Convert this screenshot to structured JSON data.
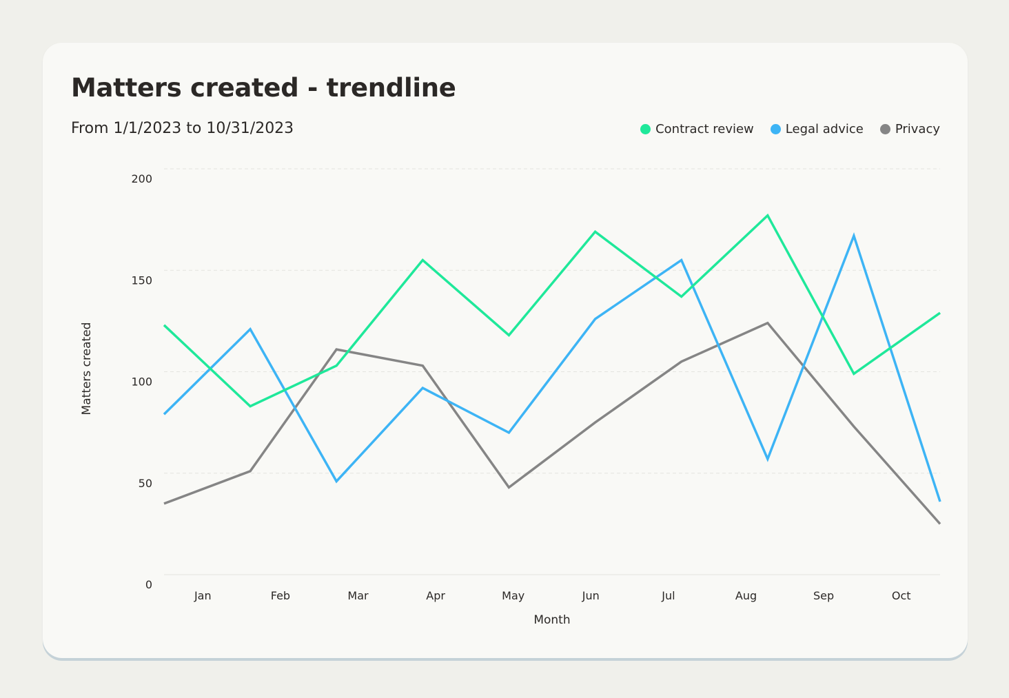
{
  "title": "Matters created - trendline",
  "subtitle": "From 1/1/2023 to 10/31/2023",
  "colors": {
    "contract_review": "#1fe89a",
    "legal_advice": "#3db4f5",
    "privacy": "#858585"
  },
  "legend": [
    {
      "name": "Contract review",
      "color": "#1fe89a"
    },
    {
      "name": "Legal advice",
      "color": "#3db4f5"
    },
    {
      "name": "Privacy",
      "color": "#858585"
    }
  ],
  "chart_data": {
    "type": "line",
    "title": "Matters created - trendline",
    "subtitle": "From 1/1/2023 to 10/31/2023",
    "xlabel": "Month",
    "ylabel": "Matters created",
    "categories": [
      "Jan",
      "Feb",
      "Mar",
      "Apr",
      "May",
      "Jun",
      "Jul",
      "Aug",
      "Sep",
      "Oct"
    ],
    "yticks": [
      0,
      50,
      100,
      150,
      200
    ],
    "ylim": [
      0,
      200
    ],
    "grid": true,
    "legend_position": "top-right",
    "x_points": [
      0,
      1,
      2,
      3,
      4,
      5,
      6,
      7,
      8,
      9
    ],
    "series": [
      {
        "name": "Contract review",
        "color": "#1fe89a",
        "values": [
          123,
          83,
          103,
          155,
          118,
          169,
          137,
          177,
          99,
          129
        ]
      },
      {
        "name": "Legal advice",
        "color": "#3db4f5",
        "values": [
          79,
          121,
          46,
          92,
          70,
          126,
          155,
          57,
          167,
          36
        ]
      },
      {
        "name": "Privacy",
        "color": "#858585",
        "values": [
          35,
          51,
          111,
          103,
          43,
          75,
          105,
          124,
          73,
          25
        ]
      }
    ]
  }
}
